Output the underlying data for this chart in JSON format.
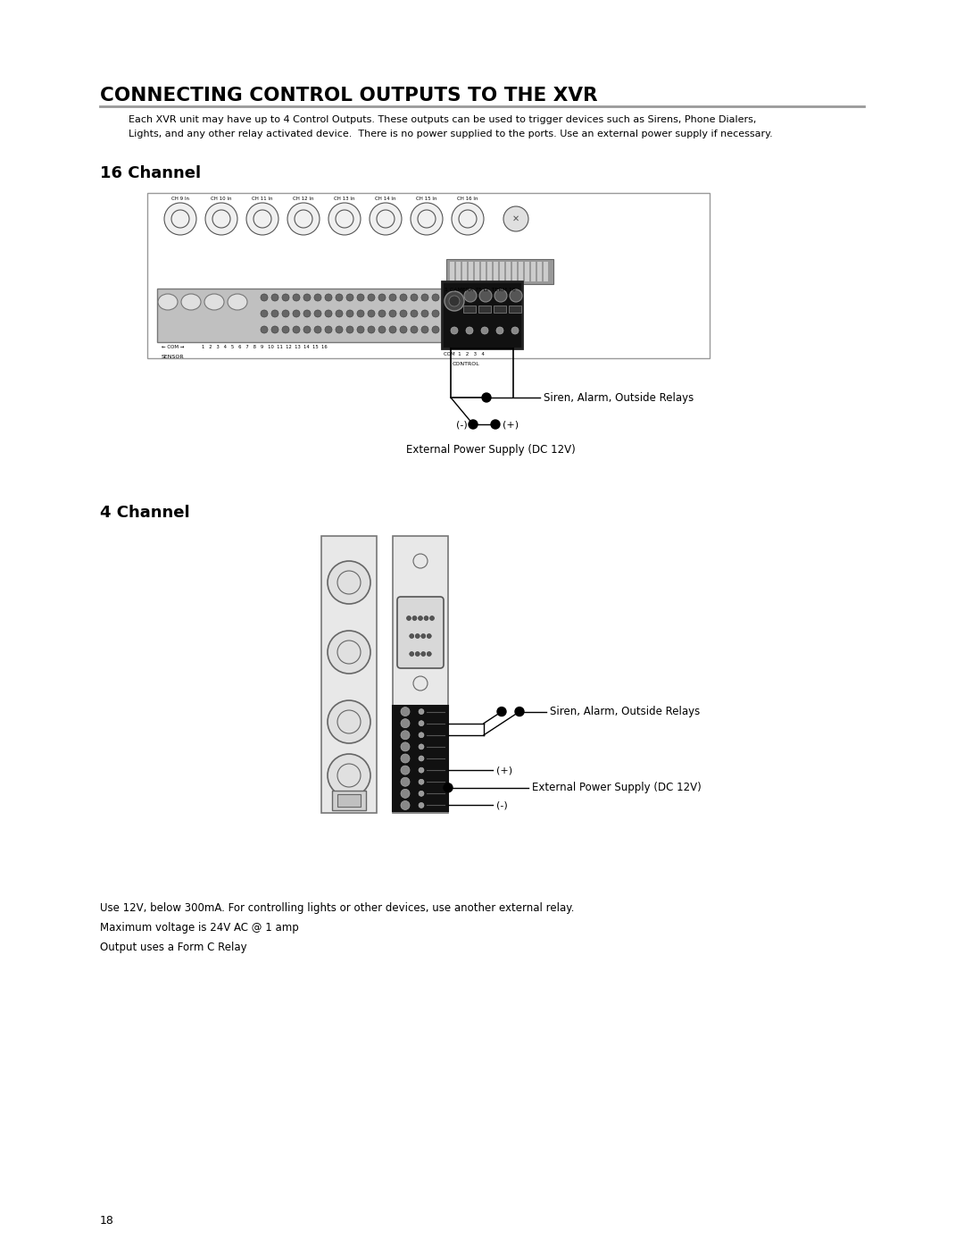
{
  "title": "CONNECTING CONTROL OUTPUTS TO THE XVR",
  "desc_line1": "Each XVR unit may have up to 4 Control Outputs. These outputs can be used to trigger devices such as Sirens, Phone Dialers,",
  "desc_line2": "Lights, and any other relay activated device.  There is no power supplied to the ports. Use an external power supply if necessary.",
  "section1": "16 Channel",
  "section2": "4 Channel",
  "footer_notes": [
    "Use 12V, below 300mA. For controlling lights or other devices, use another external relay.",
    "Maximum voltage is 24V AC @ 1 amp",
    "Output uses a Form C Relay"
  ],
  "page_number": "18",
  "bg_color": "#ffffff",
  "text_color": "#000000",
  "line_color": "#000000",
  "gray_color": "#999999",
  "dark_gray": "#555555",
  "light_gray": "#dddddd",
  "mid_gray": "#aaaaaa",
  "panel_gray": "#c8c8c8",
  "dark_panel": "#222222"
}
